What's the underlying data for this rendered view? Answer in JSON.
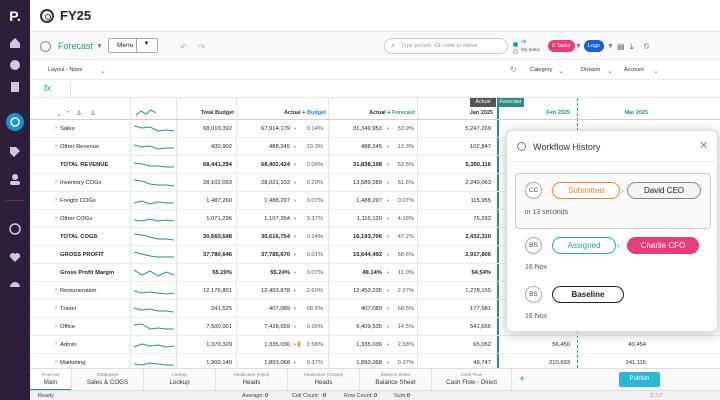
{
  "app": {
    "logo": "P."
  },
  "title": "FY25",
  "toolbar": {
    "scenario": "Forecast",
    "menu_label": "Menu",
    "search_placeholder": "Type person, GL code or status",
    "toggle_all": "All",
    "toggle_my": "My tasks",
    "tasks_label": "0 Tasks",
    "logs_label": "Logs"
  },
  "filters": {
    "layout": "Layout - None",
    "category": "Category",
    "division": "Division",
    "account": "Account"
  },
  "fx": "fx",
  "grid": {
    "headers": {
      "total_budget": "Total Budget",
      "actual_budget_pre": "Actual",
      "actual_budget_sep": " + ",
      "actual_budget_post": "Budget",
      "actual_forecast_pre": "Actual",
      "actual_forecast_sep": " + ",
      "actual_forecast_post": "Forecast",
      "jan": "Jan 2025",
      "feb": "Feb 2025",
      "mar": "Mar 2025"
    },
    "tags": {
      "actual": "Actual",
      "forecast": "Forecast"
    },
    "rows": [
      {
        "label": "Sales",
        "expand": true,
        "bold": false,
        "total_budget": "68,010,392",
        "ab": "67,914,179",
        "ab_pct": "0.14%",
        "af": "31,349,953",
        "af_pct": "53.9%",
        "jan": "5,247,269",
        "feb": "",
        "mar": ""
      },
      {
        "label": "Other Revenue",
        "expand": true,
        "bold": false,
        "total_budget": "430,902",
        "ab": "488,245",
        "ab_pct": "13.3%",
        "af": "488,245",
        "af_pct": "13.3%",
        "jan": "102,847",
        "feb": "",
        "mar": ""
      },
      {
        "label": "TOTAL REVENUE",
        "expand": false,
        "bold": true,
        "total_budget": "68,441,294",
        "ab": "68,402,424",
        "ab_pct": "0.06%",
        "af": "31,838,198",
        "af_pct": "53.5%",
        "jan": "5,350,116",
        "feb": "",
        "mar": ""
      },
      {
        "label": "Inventory COGs",
        "expand": true,
        "bold": false,
        "total_budget": "28,102,093",
        "ab": "28,021,103",
        "ab_pct": "0.29%",
        "af": "13,589,289",
        "af_pct": "51.6%",
        "jan": "2,240,063",
        "feb": "",
        "mar": ""
      },
      {
        "label": "Freight COGs",
        "expand": true,
        "bold": false,
        "total_budget": "1,487,260",
        "ab": "1,488,297",
        "ab_pct": "0.07%",
        "af": "1,488,297",
        "af_pct": "0.07%",
        "jan": "115,955",
        "feb": "",
        "mar": ""
      },
      {
        "label": "Other COGs",
        "expand": true,
        "bold": false,
        "total_budget": "1,071,296",
        "ab": "1,107,354",
        "ab_pct": "3.37%",
        "af": "1,116,120",
        "af_pct": "4.18%",
        "jan": "76,292",
        "feb": "",
        "mar": ""
      },
      {
        "label": "TOTAL COGS",
        "expand": false,
        "bold": true,
        "total_budget": "30,660,648",
        "ab": "30,616,754",
        "ab_pct": "0.14%",
        "af": "16,193,706",
        "af_pct": "47.2%",
        "jan": "2,432,310",
        "feb": "",
        "mar": ""
      },
      {
        "label": "GROSS PROFIT",
        "expand": false,
        "bold": true,
        "total_budget": "37,780,646",
        "ab": "37,785,670",
        "ab_pct": "0.01%",
        "af": "15,644,492",
        "af_pct": "58.6%",
        "jan": "2,917,806",
        "feb": "",
        "mar": ""
      },
      {
        "label": "Gross Profit Margin",
        "expand": false,
        "bold": true,
        "total_budget": "55.20%",
        "ab": "55.24%",
        "ab_pct": "0.07%",
        "af": "49.14%",
        "af_pct": "11.0%",
        "jan": "54.54%",
        "feb": "",
        "mar": ""
      },
      {
        "label": "Remuneration",
        "expand": true,
        "bold": false,
        "total_budget": "12,176,801",
        "ab": "12,493,878",
        "ab_pct": "2.60%",
        "af": "12,453,235",
        "af_pct": "2.27%",
        "jan": "1,278,155",
        "feb": "",
        "mar": ""
      },
      {
        "label": "Travel",
        "expand": true,
        "bold": false,
        "total_budget": "241,525",
        "ab": "407,089",
        "ab_pct": "68.5%",
        "af": "407,089",
        "af_pct": "68.5%",
        "jan": "177,581",
        "feb": "",
        "mar": ""
      },
      {
        "label": "Office",
        "expand": true,
        "bold": false,
        "total_budget": "7,500,001",
        "ab": "7,428,659",
        "ab_pct": "0.95%",
        "af": "6,409,535",
        "af_pct": "14.5%",
        "jan": "541,656",
        "feb": "",
        "mar": ""
      },
      {
        "label": "Admin",
        "expand": true,
        "bold": false,
        "total_budget": "1,370,329",
        "ab": "1,335,036",
        "ab_pct": "2.58%",
        "af": "1,335,036",
        "af_pct": "2.58%",
        "jan": "65,052",
        "feb": "56,450",
        "mar": "40,454"
      },
      {
        "label": "Marketing",
        "expand": true,
        "bold": false,
        "total_budget": "1,900,140",
        "ab": "1,893,068",
        "ab_pct": "0.37%",
        "af": "1,893,068",
        "af_pct": "0.37%",
        "jan": "49,747",
        "feb": "210,693",
        "mar": "141,115"
      }
    ]
  },
  "workflow": {
    "title": "Workflow History",
    "entries": [
      {
        "avatar": "CC",
        "status": "Submitted",
        "assignee": "David CEO",
        "meta": "in 13 seconds"
      },
      {
        "avatar": "BS",
        "status": "Assigned",
        "assignee": "Charlie CFO",
        "meta": "16 Nov"
      },
      {
        "avatar": "BS",
        "status": "Baseline",
        "meta": "16 Nov"
      }
    ]
  },
  "tabs": [
    {
      "category": "Financial",
      "name": "Main"
    },
    {
      "category": "Databases",
      "name": "Sales & COGS"
    },
    {
      "category": "Lookup",
      "name": "Lookup"
    },
    {
      "category": "Headcount (Input)",
      "name": "Heads"
    },
    {
      "category": "Headcount (Output)",
      "name": "Heads"
    },
    {
      "category": "Balance Sheet",
      "name": "Balance Sheet"
    },
    {
      "category": "Cash Flow",
      "name": "Cash Flow - Direct"
    }
  ],
  "publish_label": "Publish",
  "status": {
    "ready": "Ready",
    "average_label": "Average:",
    "average": "0",
    "cell_count_label": "Cell Count:",
    "cell_count": "0",
    "row_count_label": "Row Count:",
    "row_count": "0",
    "sum_label": "Sum:",
    "sum": "0",
    "version": "3.7.0"
  },
  "colors": {
    "sidebar": "#2b1f3a",
    "accent": "#2a8f7f",
    "pink": "#e83e78",
    "blue": "#1a5fd6"
  }
}
